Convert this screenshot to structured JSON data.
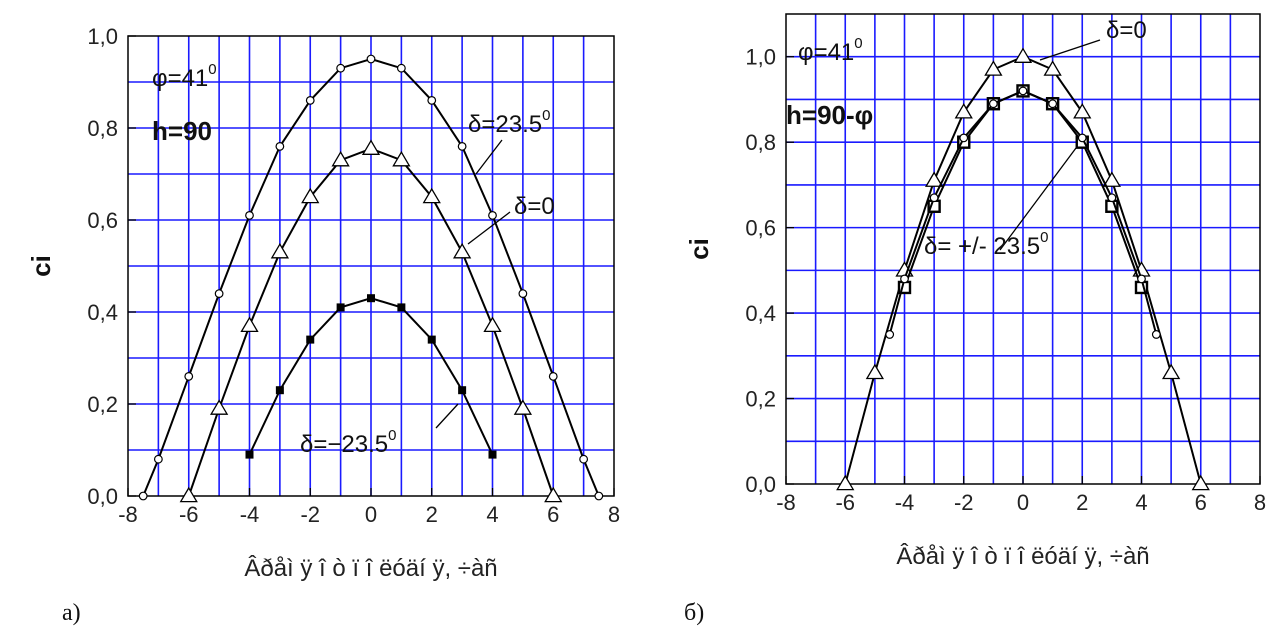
{
  "chart_data": [
    {
      "type": "line",
      "panel_label": "а)",
      "ylabel": "ci",
      "xlabel": "Âðåì ÿ î ò ï î ëóäí ÿ, ÷àñ",
      "xlim": [
        -8,
        8
      ],
      "ylim": [
        0,
        1.0
      ],
      "xticks": [
        -8,
        -6,
        -4,
        -2,
        0,
        2,
        4,
        6,
        8
      ],
      "yticks": [
        0,
        0.2,
        0.4,
        0.6,
        0.8,
        1.0
      ],
      "xtick_labels": [
        "-8",
        "-6",
        "-4",
        "-2",
        "0",
        "2",
        "4",
        "6",
        "8"
      ],
      "ytick_labels": [
        "0,0",
        "0,2",
        "0,4",
        "0,6",
        "0,8",
        "1,0"
      ],
      "grid": true,
      "annotations": [
        {
          "text": "φ=41",
          "sup": "0"
        },
        {
          "text": "h=90",
          "sup": ""
        }
      ],
      "series": [
        {
          "name": "δ=23.5",
          "name_sup": "0",
          "marker": "circle",
          "x": [
            -7.5,
            -7,
            -6,
            -5,
            -4,
            -3,
            -2,
            -1,
            0,
            1,
            2,
            3,
            4,
            5,
            6,
            7,
            7.5
          ],
          "y": [
            0.0,
            0.08,
            0.26,
            0.44,
            0.61,
            0.76,
            0.86,
            0.93,
            0.95,
            0.93,
            0.86,
            0.76,
            0.61,
            0.44,
            0.26,
            0.08,
            0.0
          ]
        },
        {
          "name": "δ=0",
          "name_sup": "",
          "marker": "triangle",
          "x": [
            -6,
            -5,
            -4,
            -3,
            -2,
            -1,
            0,
            1,
            2,
            3,
            4,
            5,
            6
          ],
          "y": [
            0.0,
            0.19,
            0.37,
            0.53,
            0.65,
            0.73,
            0.755,
            0.73,
            0.65,
            0.53,
            0.37,
            0.19,
            0.0
          ]
        },
        {
          "name": "δ=−23.5",
          "name_sup": "0",
          "marker": "filled-square",
          "x": [
            -4,
            -3,
            -2,
            -1,
            0,
            1,
            2,
            3,
            4
          ],
          "y": [
            0.09,
            0.23,
            0.34,
            0.41,
            0.43,
            0.41,
            0.34,
            0.23,
            0.09
          ]
        }
      ]
    },
    {
      "type": "line",
      "panel_label": "б)",
      "ylabel": "ci",
      "xlabel": "Âðåì ÿ î ò ï î ëóäí ÿ, ÷àñ",
      "xlim": [
        -8,
        8
      ],
      "ylim": [
        0,
        1.1
      ],
      "xticks": [
        -8,
        -6,
        -4,
        -2,
        0,
        2,
        4,
        6,
        8
      ],
      "yticks": [
        0,
        0.2,
        0.4,
        0.6,
        0.8,
        1.0
      ],
      "xtick_labels": [
        "-8",
        "-6",
        "-4",
        "-2",
        "0",
        "2",
        "4",
        "6",
        "8"
      ],
      "ytick_labels": [
        "0,0",
        "0,2",
        "0,4",
        "0,6",
        "0,8",
        "1,0"
      ],
      "grid": true,
      "annotations": [
        {
          "text": "φ=41",
          "sup": "0"
        },
        {
          "text": "h=90-φ",
          "sup": ""
        }
      ],
      "series": [
        {
          "name": "δ=0",
          "name_sup": "",
          "marker": "triangle",
          "x": [
            -6,
            -5,
            -4,
            -3,
            -2,
            -1,
            0,
            1,
            2,
            3,
            4,
            5,
            6
          ],
          "y": [
            0.0,
            0.26,
            0.5,
            0.71,
            0.87,
            0.97,
            1.0,
            0.97,
            0.87,
            0.71,
            0.5,
            0.26,
            0.0
          ]
        },
        {
          "name": "δ= +/- 23.5",
          "name_sup": "0",
          "marker": "square",
          "x": [
            -4,
            -3,
            -2,
            -1,
            0,
            1,
            2,
            3,
            4
          ],
          "y": [
            0.46,
            0.65,
            0.8,
            0.89,
            0.92,
            0.89,
            0.8,
            0.65,
            0.46
          ]
        },
        {
          "name": "",
          "name_sup": "",
          "marker": "circle",
          "x": [
            -4.5,
            -4,
            -3,
            -2,
            -1,
            0,
            1,
            2,
            3,
            4,
            4.5
          ],
          "y": [
            0.35,
            0.48,
            0.67,
            0.81,
            0.89,
            0.92,
            0.89,
            0.81,
            0.67,
            0.48,
            0.35
          ]
        }
      ]
    }
  ]
}
